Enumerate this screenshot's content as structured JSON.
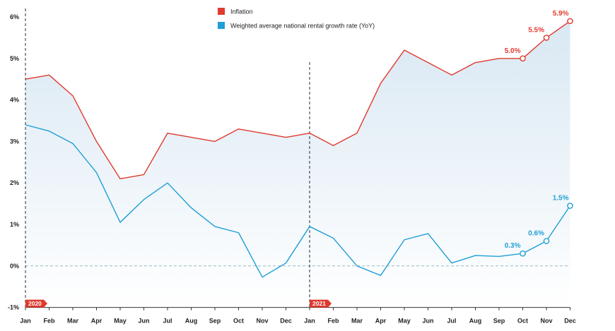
{
  "chart_data": {
    "type": "line",
    "x": [
      "Jan",
      "Feb",
      "Mar",
      "Apr",
      "May",
      "Jun",
      "Jul",
      "Aug",
      "Sep",
      "Oct",
      "Nov",
      "Dec",
      "Jan",
      "Feb",
      "Mar",
      "Apr",
      "May",
      "Jun",
      "Jul",
      "Aug",
      "Sep",
      "Oct",
      "Nov",
      "Dec"
    ],
    "year_markers": [
      {
        "label": "2020",
        "index": 0
      },
      {
        "label": "2021",
        "index": 12
      }
    ],
    "ylim": [
      -1,
      6
    ],
    "yticks": [
      "6%",
      "5%",
      "4%",
      "3%",
      "2%",
      "1%",
      "0%",
      "-1%"
    ],
    "ytick_values": [
      6,
      5,
      4,
      3,
      2,
      1,
      0,
      -1
    ],
    "series": [
      {
        "name": "Inflation",
        "color": "#e03a2f",
        "values": [
          4.5,
          4.6,
          4.1,
          3.0,
          2.1,
          2.2,
          3.2,
          3.1,
          3.0,
          3.3,
          3.2,
          3.1,
          3.2,
          2.9,
          3.2,
          4.4,
          5.2,
          4.9,
          4.6,
          4.9,
          5.0,
          5.0,
          5.5,
          5.9
        ],
        "labels": [
          {
            "index": 21,
            "text": "5.0%"
          },
          {
            "index": 22,
            "text": "5.5%"
          },
          {
            "index": 23,
            "text": "5.9%"
          }
        ]
      },
      {
        "name": "Weighted average national rental growth rate (YoY)",
        "color": "#1e9fd6",
        "values": [
          3.4,
          3.25,
          2.95,
          2.25,
          1.05,
          1.6,
          2.0,
          1.4,
          0.95,
          0.8,
          -0.27,
          0.07,
          0.95,
          0.67,
          0.0,
          -0.23,
          0.63,
          0.78,
          0.07,
          0.25,
          0.23,
          0.3,
          0.6,
          1.45
        ],
        "labels": [
          {
            "index": 21,
            "text": "0.3%"
          },
          {
            "index": 22,
            "text": "0.6%"
          },
          {
            "index": 23,
            "text": "1.5%"
          }
        ]
      }
    ],
    "legend_position": "top-center",
    "grid": false
  }
}
